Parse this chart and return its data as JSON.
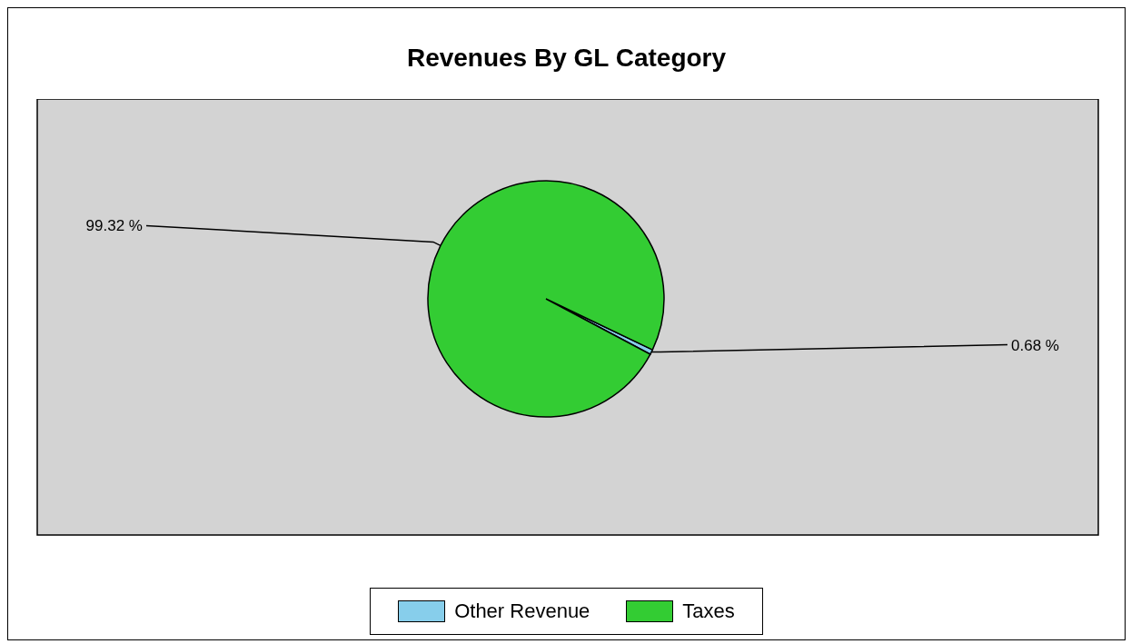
{
  "chart_data": {
    "type": "pie",
    "title": "Revenues By GL Category",
    "categories": [
      "Other Revenue",
      "Taxes"
    ],
    "values": [
      0.68,
      99.32
    ],
    "colors": [
      "#87ceeb",
      "#33cc33"
    ],
    "value_labels": [
      "0.68 %",
      "99.32 %"
    ],
    "legend": "bottom"
  }
}
